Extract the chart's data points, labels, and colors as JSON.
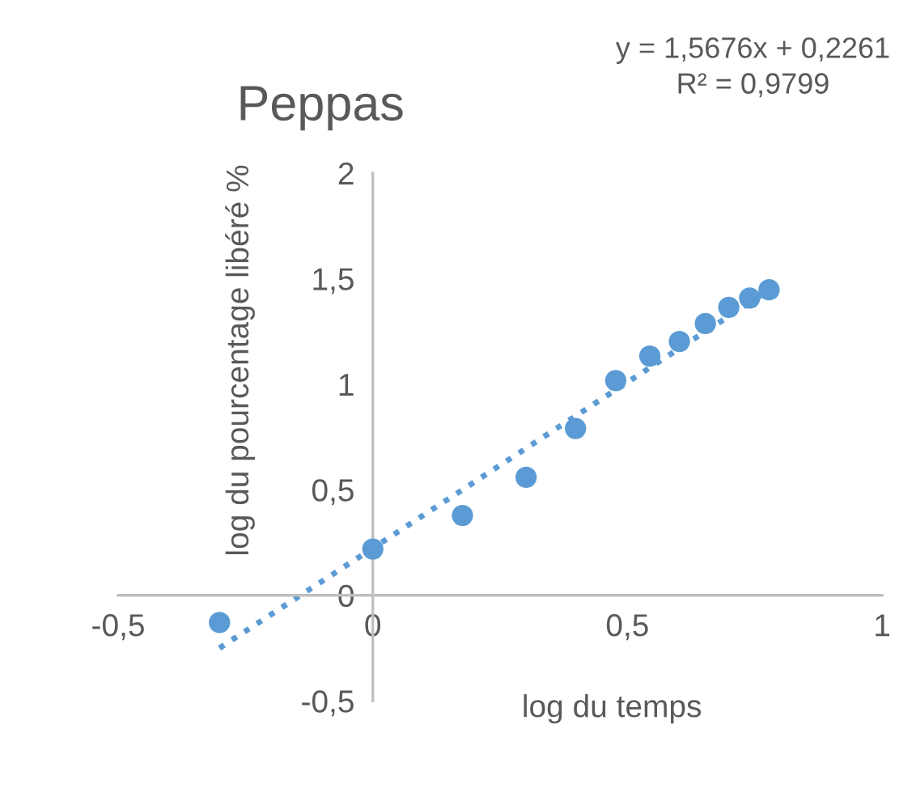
{
  "chart_data": {
    "type": "scatter",
    "title": "Peppas",
    "xlabel": "log du temps",
    "ylabel": "log du pourcentage libéré %",
    "annotations": [
      "y = 1,5676x + 0,2261\nR² = 0,9799"
    ],
    "xlim": [
      -0.5,
      1
    ],
    "ylim": [
      -0.5,
      2
    ],
    "xticks": [
      {
        "value": -0.5,
        "label": "-0,5"
      },
      0,
      {
        "value": 0.5,
        "label": "0,5"
      },
      1
    ],
    "yticks": [
      {
        "value": -0.5,
        "label": "-0,5"
      },
      0,
      {
        "value": 0.5,
        "label": "0,5"
      },
      1,
      {
        "value": 1.5,
        "label": "1,5"
      },
      2
    ],
    "grid": false,
    "series": [
      {
        "color": "#5b9bd5",
        "marker": "circle",
        "x": [
          -0.301,
          0,
          0.176,
          0.301,
          0.398,
          0.477,
          0.544,
          0.602,
          0.653,
          0.699,
          0.74,
          0.778
        ],
        "values": [
          -0.129,
          0.219,
          0.378,
          0.559,
          0.79,
          1.017,
          1.133,
          1.202,
          1.287,
          1.364,
          1.408,
          1.447
        ]
      },
      {
        "type": "line",
        "color": "#5b9bd5",
        "line_style": "dotted",
        "marker": "none",
        "x": [
          -0.301,
          0.778
        ],
        "values": [
          -0.25,
          1.446
        ]
      }
    ]
  }
}
